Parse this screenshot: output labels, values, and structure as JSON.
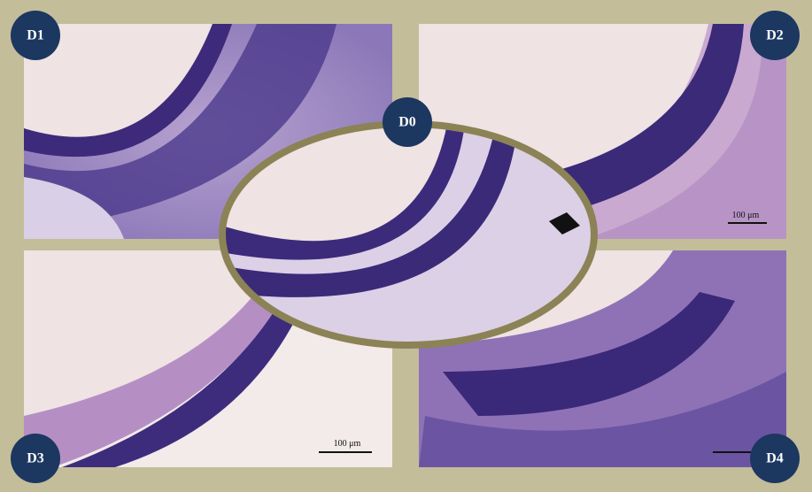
{
  "panels": [
    {
      "label": "D1"
    },
    {
      "label": "D2"
    },
    {
      "label": "D3"
    },
    {
      "label": "D4"
    }
  ],
  "center": {
    "label": "D0"
  },
  "scale_bars": [
    {
      "label": "100 μm"
    },
    {
      "label": "100 μm"
    }
  ]
}
